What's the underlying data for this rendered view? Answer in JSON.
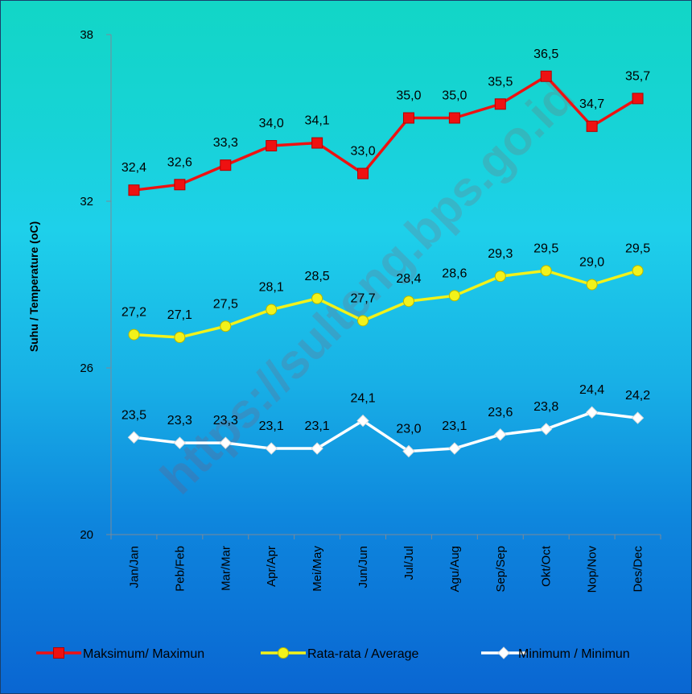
{
  "chart_data": {
    "type": "line",
    "categories": [
      "Jan/Jan",
      "Peb/Feb",
      "Mar/Mar",
      "Apr/Apr",
      "Mei/May",
      "Jun/Jun",
      "Jul/Jul",
      "Agu/Aug",
      "Sep/Sep",
      "Okt/Oct",
      "Nop/Nov",
      "Des/Dec"
    ],
    "ylabel": "Suhu / Temperature (oC)",
    "ylim": [
      20,
      38
    ],
    "yticks": [
      "20",
      "26",
      "32",
      "38"
    ],
    "series": [
      {
        "name": "Maksimum/ Maximun",
        "color": "#ee1111",
        "marker": "square",
        "values": [
          32.4,
          32.6,
          33.3,
          34.0,
          34.1,
          33.0,
          35.0,
          35.0,
          35.5,
          36.5,
          34.7,
          35.7
        ],
        "labels": [
          "32,4",
          "32,6",
          "33,3",
          "34,0",
          "34,1",
          "33,0",
          "35,0",
          "35,0",
          "35,5",
          "36,5",
          "34,7",
          "35,7"
        ]
      },
      {
        "name": "Rata-rata / Average",
        "color": "#f2f21a",
        "marker": "circle",
        "values": [
          27.2,
          27.1,
          27.5,
          28.1,
          28.5,
          27.7,
          28.4,
          28.6,
          29.3,
          29.5,
          29.0,
          29.5
        ],
        "labels": [
          "27,2",
          "27,1",
          "27,5",
          "28,1",
          "28,5",
          "27,7",
          "28,4",
          "28,6",
          "29,3",
          "29,5",
          "29,0",
          "29,5"
        ]
      },
      {
        "name": "Minimum / Minimun",
        "color": "#ffffff",
        "marker": "diamond",
        "values": [
          23.5,
          23.3,
          23.3,
          23.1,
          23.1,
          24.1,
          23.0,
          23.1,
          23.6,
          23.8,
          24.4,
          24.2
        ],
        "labels": [
          "23,5",
          "23,3",
          "23,3",
          "23,1",
          "23,1",
          "24,1",
          "23,0",
          "23,1",
          "23,6",
          "23,8",
          "24,4",
          "24,2"
        ]
      }
    ],
    "legend": "bottom",
    "grid": false
  },
  "watermark": "https://sulteng.bps.go.id"
}
